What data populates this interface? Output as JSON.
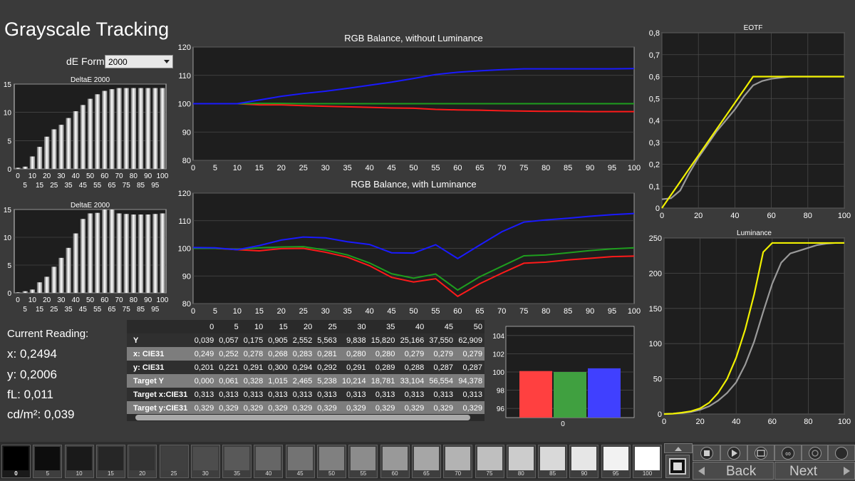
{
  "title": "Grayscale Tracking",
  "de_formula": {
    "label": "dE Formula:",
    "value": "2000"
  },
  "current_reading": {
    "title": "Current Reading:",
    "x": "x: 0,2494",
    "y": "y: 0,2006",
    "fl": "fL: 0,011",
    "cdm2": "cd/m²: 0,039"
  },
  "chart_data": [
    {
      "id": "deltae-top",
      "type": "bar",
      "title": "DeltaE 2000",
      "categories": [
        "0",
        "5",
        "10",
        "15",
        "20",
        "25",
        "30",
        "35",
        "40",
        "45",
        "50",
        "55",
        "60",
        "65",
        "70",
        "75",
        "80",
        "85",
        "90",
        "95",
        "100"
      ],
      "values": [
        0.2,
        0.4,
        2.2,
        3.9,
        5.7,
        7.0,
        7.8,
        9.0,
        10.2,
        11.3,
        12.4,
        13.2,
        13.8,
        14.1,
        14.3,
        14.3,
        14.3,
        14.3,
        14.3,
        14.3,
        14.3
      ],
      "ylim": [
        0,
        15
      ],
      "yticks": [
        0,
        5,
        10,
        15
      ],
      "xticks_top": [
        "0",
        "10",
        "20",
        "30",
        "40",
        "50",
        "60",
        "70",
        "80",
        "90",
        "100"
      ],
      "xticks_bottom": [
        "5",
        "15",
        "25",
        "35",
        "45",
        "55",
        "65",
        "75",
        "85",
        "95"
      ]
    },
    {
      "id": "deltae-bottom",
      "type": "bar",
      "title": "DeltaE 2000",
      "categories": [
        "0",
        "5",
        "10",
        "15",
        "20",
        "25",
        "30",
        "35",
        "40",
        "45",
        "50",
        "55",
        "60",
        "65",
        "70",
        "75",
        "80",
        "85",
        "90",
        "95",
        "100"
      ],
      "values": [
        0.1,
        0.3,
        0.6,
        1.9,
        2.9,
        4.7,
        6.3,
        8.1,
        10.7,
        13.3,
        14.3,
        14.4,
        15.0,
        15.0,
        14.3,
        14.2,
        14.1,
        14.1,
        14.1,
        14.2,
        14.3
      ],
      "ylim": [
        0,
        15
      ],
      "yticks": [
        0,
        5,
        10,
        15
      ],
      "xticks_top": [
        "0",
        "10",
        "20",
        "30",
        "40",
        "50",
        "60",
        "70",
        "80",
        "90",
        "100"
      ],
      "xticks_bottom": [
        "5",
        "15",
        "25",
        "35",
        "45",
        "55",
        "65",
        "75",
        "85",
        "95"
      ]
    },
    {
      "id": "rgb-no-lum",
      "type": "line",
      "title": "RGB Balance, without Luminance",
      "x": [
        0,
        5,
        10,
        15,
        20,
        25,
        30,
        35,
        40,
        45,
        50,
        55,
        60,
        65,
        70,
        75,
        80,
        85,
        90,
        95,
        100
      ],
      "ylim": [
        80,
        120
      ],
      "yticks": [
        80,
        90,
        100,
        110,
        120
      ],
      "xticks": [
        "0",
        "5",
        "10",
        "15",
        "20",
        "25",
        "30",
        "35",
        "40",
        "45",
        "50",
        "55",
        "60",
        "65",
        "70",
        "75",
        "80",
        "85",
        "90",
        "95",
        "100"
      ],
      "series": [
        {
          "color": "#ff1a1a",
          "values": [
            100,
            100,
            100,
            99.6,
            99.6,
            99.3,
            99.1,
            98.9,
            98.7,
            98.5,
            98.4,
            98.0,
            97.8,
            97.7,
            97.5,
            97.4,
            97.3,
            97.3,
            97.2,
            97.2,
            97.2
          ]
        },
        {
          "color": "#1e9e1e",
          "values": [
            100,
            100,
            100,
            100.1,
            100.1,
            100,
            100,
            100,
            100,
            100,
            100,
            100,
            100,
            100,
            100,
            100,
            100,
            100,
            100,
            100,
            100
          ]
        },
        {
          "color": "#1a1aff",
          "values": [
            100,
            100,
            100,
            101.3,
            102.6,
            103.6,
            104.4,
            105.4,
            106.5,
            107.6,
            108.9,
            110.3,
            111.1,
            111.6,
            112.0,
            112.3,
            112.3,
            112.3,
            112.3,
            112.3,
            112.4
          ]
        }
      ]
    },
    {
      "id": "rgb-lum",
      "type": "line",
      "title": "RGB Balance, with Luminance",
      "x": [
        0,
        5,
        10,
        15,
        20,
        25,
        30,
        35,
        40,
        45,
        50,
        55,
        60,
        65,
        70,
        75,
        80,
        85,
        90,
        95,
        100
      ],
      "ylim": [
        80,
        120
      ],
      "yticks": [
        80,
        90,
        100,
        110,
        120
      ],
      "xticks": [
        "0",
        "5",
        "10",
        "15",
        "20",
        "25",
        "30",
        "35",
        "40",
        "45",
        "50",
        "55",
        "60",
        "65",
        "70",
        "75",
        "80",
        "85",
        "90",
        "95",
        "100"
      ],
      "series": [
        {
          "color": "#ff1a1a",
          "values": [
            100,
            100,
            99.5,
            99.1,
            99.9,
            100.0,
            98.6,
            96.8,
            93.7,
            89.5,
            87.8,
            89.0,
            82.6,
            87.2,
            91.0,
            94.6,
            95.0,
            95.8,
            96.4,
            97.0,
            97.2
          ]
        },
        {
          "color": "#1e9e1e",
          "values": [
            100,
            100,
            99.6,
            100.2,
            100.5,
            100.6,
            99.4,
            97.6,
            94.7,
            90.8,
            89.2,
            90.7,
            84.9,
            89.7,
            93.5,
            97.3,
            97.6,
            98.4,
            99.2,
            99.8,
            100.2
          ]
        },
        {
          "color": "#1a1aff",
          "values": [
            100.3,
            100.2,
            99.5,
            101.0,
            103.0,
            104.1,
            103.8,
            102.4,
            101.4,
            98.4,
            98.3,
            101.3,
            96.3,
            101.2,
            106.0,
            109.5,
            110.3,
            110.9,
            111.6,
            112.2,
            112.6
          ]
        }
      ]
    },
    {
      "id": "eotf",
      "type": "line",
      "title": "EOTF",
      "x": [
        0,
        5,
        10,
        15,
        20,
        25,
        30,
        35,
        40,
        45,
        50,
        55,
        60,
        65,
        70,
        75,
        80,
        85,
        90,
        95,
        100
      ],
      "xlim": [
        0,
        100
      ],
      "ylim": [
        0,
        0.8
      ],
      "yticks": [
        "0",
        "0,1",
        "0,2",
        "0,3",
        "0,4",
        "0,5",
        "0,6",
        "0,7",
        "0,8"
      ],
      "ytick_values": [
        0,
        0.1,
        0.2,
        0.3,
        0.4,
        0.5,
        0.6,
        0.7,
        0.8
      ],
      "xticks": [
        "0",
        "20",
        "40",
        "60",
        "80",
        "100"
      ],
      "series": [
        {
          "color": "#f0f000",
          "values": [
            0.0,
            0.06,
            0.12,
            0.18,
            0.24,
            0.3,
            0.36,
            0.42,
            0.48,
            0.54,
            0.6,
            0.6,
            0.6,
            0.6,
            0.6,
            0.6,
            0.6,
            0.6,
            0.6,
            0.6,
            0.6
          ]
        },
        {
          "color": "#9a9a9a",
          "values": [
            0.04,
            0.045,
            0.08,
            0.16,
            0.23,
            0.29,
            0.35,
            0.4,
            0.45,
            0.51,
            0.56,
            0.58,
            0.59,
            0.595,
            0.6,
            0.6,
            0.6,
            0.6,
            0.6,
            0.6,
            0.6
          ]
        }
      ]
    },
    {
      "id": "luminance",
      "type": "line",
      "title": "Luminance",
      "x": [
        0,
        5,
        10,
        15,
        20,
        25,
        30,
        35,
        40,
        45,
        50,
        55,
        60,
        65,
        70,
        75,
        80,
        85,
        90,
        95,
        100
      ],
      "xlim": [
        0,
        100
      ],
      "ylim": [
        0,
        250
      ],
      "yticks": [
        "0",
        "50",
        "100",
        "150",
        "200",
        "250"
      ],
      "ytick_values": [
        0,
        50,
        100,
        150,
        200,
        250
      ],
      "xticks": [
        "0",
        "20",
        "40",
        "60",
        "80",
        "100"
      ],
      "series": [
        {
          "color": "#f0f000",
          "values": [
            0,
            0.5,
            2,
            4,
            8,
            16,
            30,
            50,
            80,
            120,
            170,
            230,
            243,
            243,
            243,
            243,
            243,
            243,
            243,
            243,
            243
          ]
        },
        {
          "color": "#9a9a9a",
          "values": [
            0,
            0.5,
            1.5,
            3,
            6,
            11,
            19,
            30,
            45,
            70,
            103,
            145,
            185,
            215,
            228,
            232,
            236,
            240,
            242,
            243,
            243
          ]
        }
      ]
    },
    {
      "id": "rgb-bars",
      "type": "bar",
      "title": "",
      "categories": [
        "0"
      ],
      "series": [
        {
          "color": "#ff4040",
          "values": [
            100.1
          ]
        },
        {
          "color": "#40a040",
          "values": [
            100.0
          ]
        },
        {
          "color": "#4040ff",
          "values": [
            100.4
          ]
        }
      ],
      "ylim": [
        95,
        105
      ],
      "yticks": [
        96,
        98,
        100,
        102,
        104
      ]
    }
  ],
  "table": {
    "columns": [
      "0",
      "5",
      "10",
      "15",
      "20",
      "25",
      "30",
      "35",
      "40",
      "45",
      "50"
    ],
    "rows": [
      {
        "label": "Y",
        "values": [
          "0,039",
          "0,057",
          "0,175",
          "0,905",
          "2,552",
          "5,563",
          "9,838",
          "15,820",
          "25,166",
          "37,550",
          "62,909"
        ]
      },
      {
        "label": "x: CIE31",
        "values": [
          "0,249",
          "0,252",
          "0,278",
          "0,268",
          "0,283",
          "0,281",
          "0,280",
          "0,280",
          "0,279",
          "0,279",
          "0,279"
        ]
      },
      {
        "label": "y: CIE31",
        "values": [
          "0,201",
          "0,221",
          "0,291",
          "0,300",
          "0,294",
          "0,292",
          "0,291",
          "0,289",
          "0,288",
          "0,287",
          "0,287"
        ]
      },
      {
        "label": "Target Y",
        "values": [
          "0,000",
          "0,061",
          "0,328",
          "1,015",
          "2,465",
          "5,238",
          "10,214",
          "18,781",
          "33,104",
          "56,554",
          "94,378"
        ]
      },
      {
        "label": "Target x:CIE31",
        "values": [
          "0,313",
          "0,313",
          "0,313",
          "0,313",
          "0,313",
          "0,313",
          "0,313",
          "0,313",
          "0,313",
          "0,313",
          "0,313"
        ]
      },
      {
        "label": "Target y:CIE31",
        "values": [
          "0,329",
          "0,329",
          "0,329",
          "0,329",
          "0,329",
          "0,329",
          "0,329",
          "0,329",
          "0,329",
          "0,329",
          "0,329"
        ]
      }
    ]
  },
  "patches": [
    {
      "label": "0",
      "color": "#000000"
    },
    {
      "label": "5",
      "color": "#0d0d0d"
    },
    {
      "label": "10",
      "color": "#1a1a1a"
    },
    {
      "label": "15",
      "color": "#262626"
    },
    {
      "label": "20",
      "color": "#333333"
    },
    {
      "label": "25",
      "color": "#404040"
    },
    {
      "label": "30",
      "color": "#4d4d4d"
    },
    {
      "label": "35",
      "color": "#595959"
    },
    {
      "label": "40",
      "color": "#666666"
    },
    {
      "label": "45",
      "color": "#737373"
    },
    {
      "label": "50",
      "color": "#808080"
    },
    {
      "label": "55",
      "color": "#8c8c8c"
    },
    {
      "label": "60",
      "color": "#999999"
    },
    {
      "label": "65",
      "color": "#a6a6a6"
    },
    {
      "label": "70",
      "color": "#b3b3b3"
    },
    {
      "label": "75",
      "color": "#bfbfbf"
    },
    {
      "label": "80",
      "color": "#cccccc"
    },
    {
      "label": "85",
      "color": "#d9d9d9"
    },
    {
      "label": "90",
      "color": "#e6e6e6"
    },
    {
      "label": "95",
      "color": "#f2f2f2"
    },
    {
      "label": "100",
      "color": "#ffffff"
    }
  ],
  "nav": {
    "back": "Back",
    "next": "Next"
  },
  "icons": {
    "stop": "stop-icon",
    "play": "play-icon",
    "fit": "fit-window-icon",
    "loop": "loop-icon",
    "refresh": "refresh-icon",
    "record": "record-icon",
    "up": "arrow-up-icon",
    "down": "arrow-down-icon",
    "pattern": "pattern-stop-icon"
  }
}
